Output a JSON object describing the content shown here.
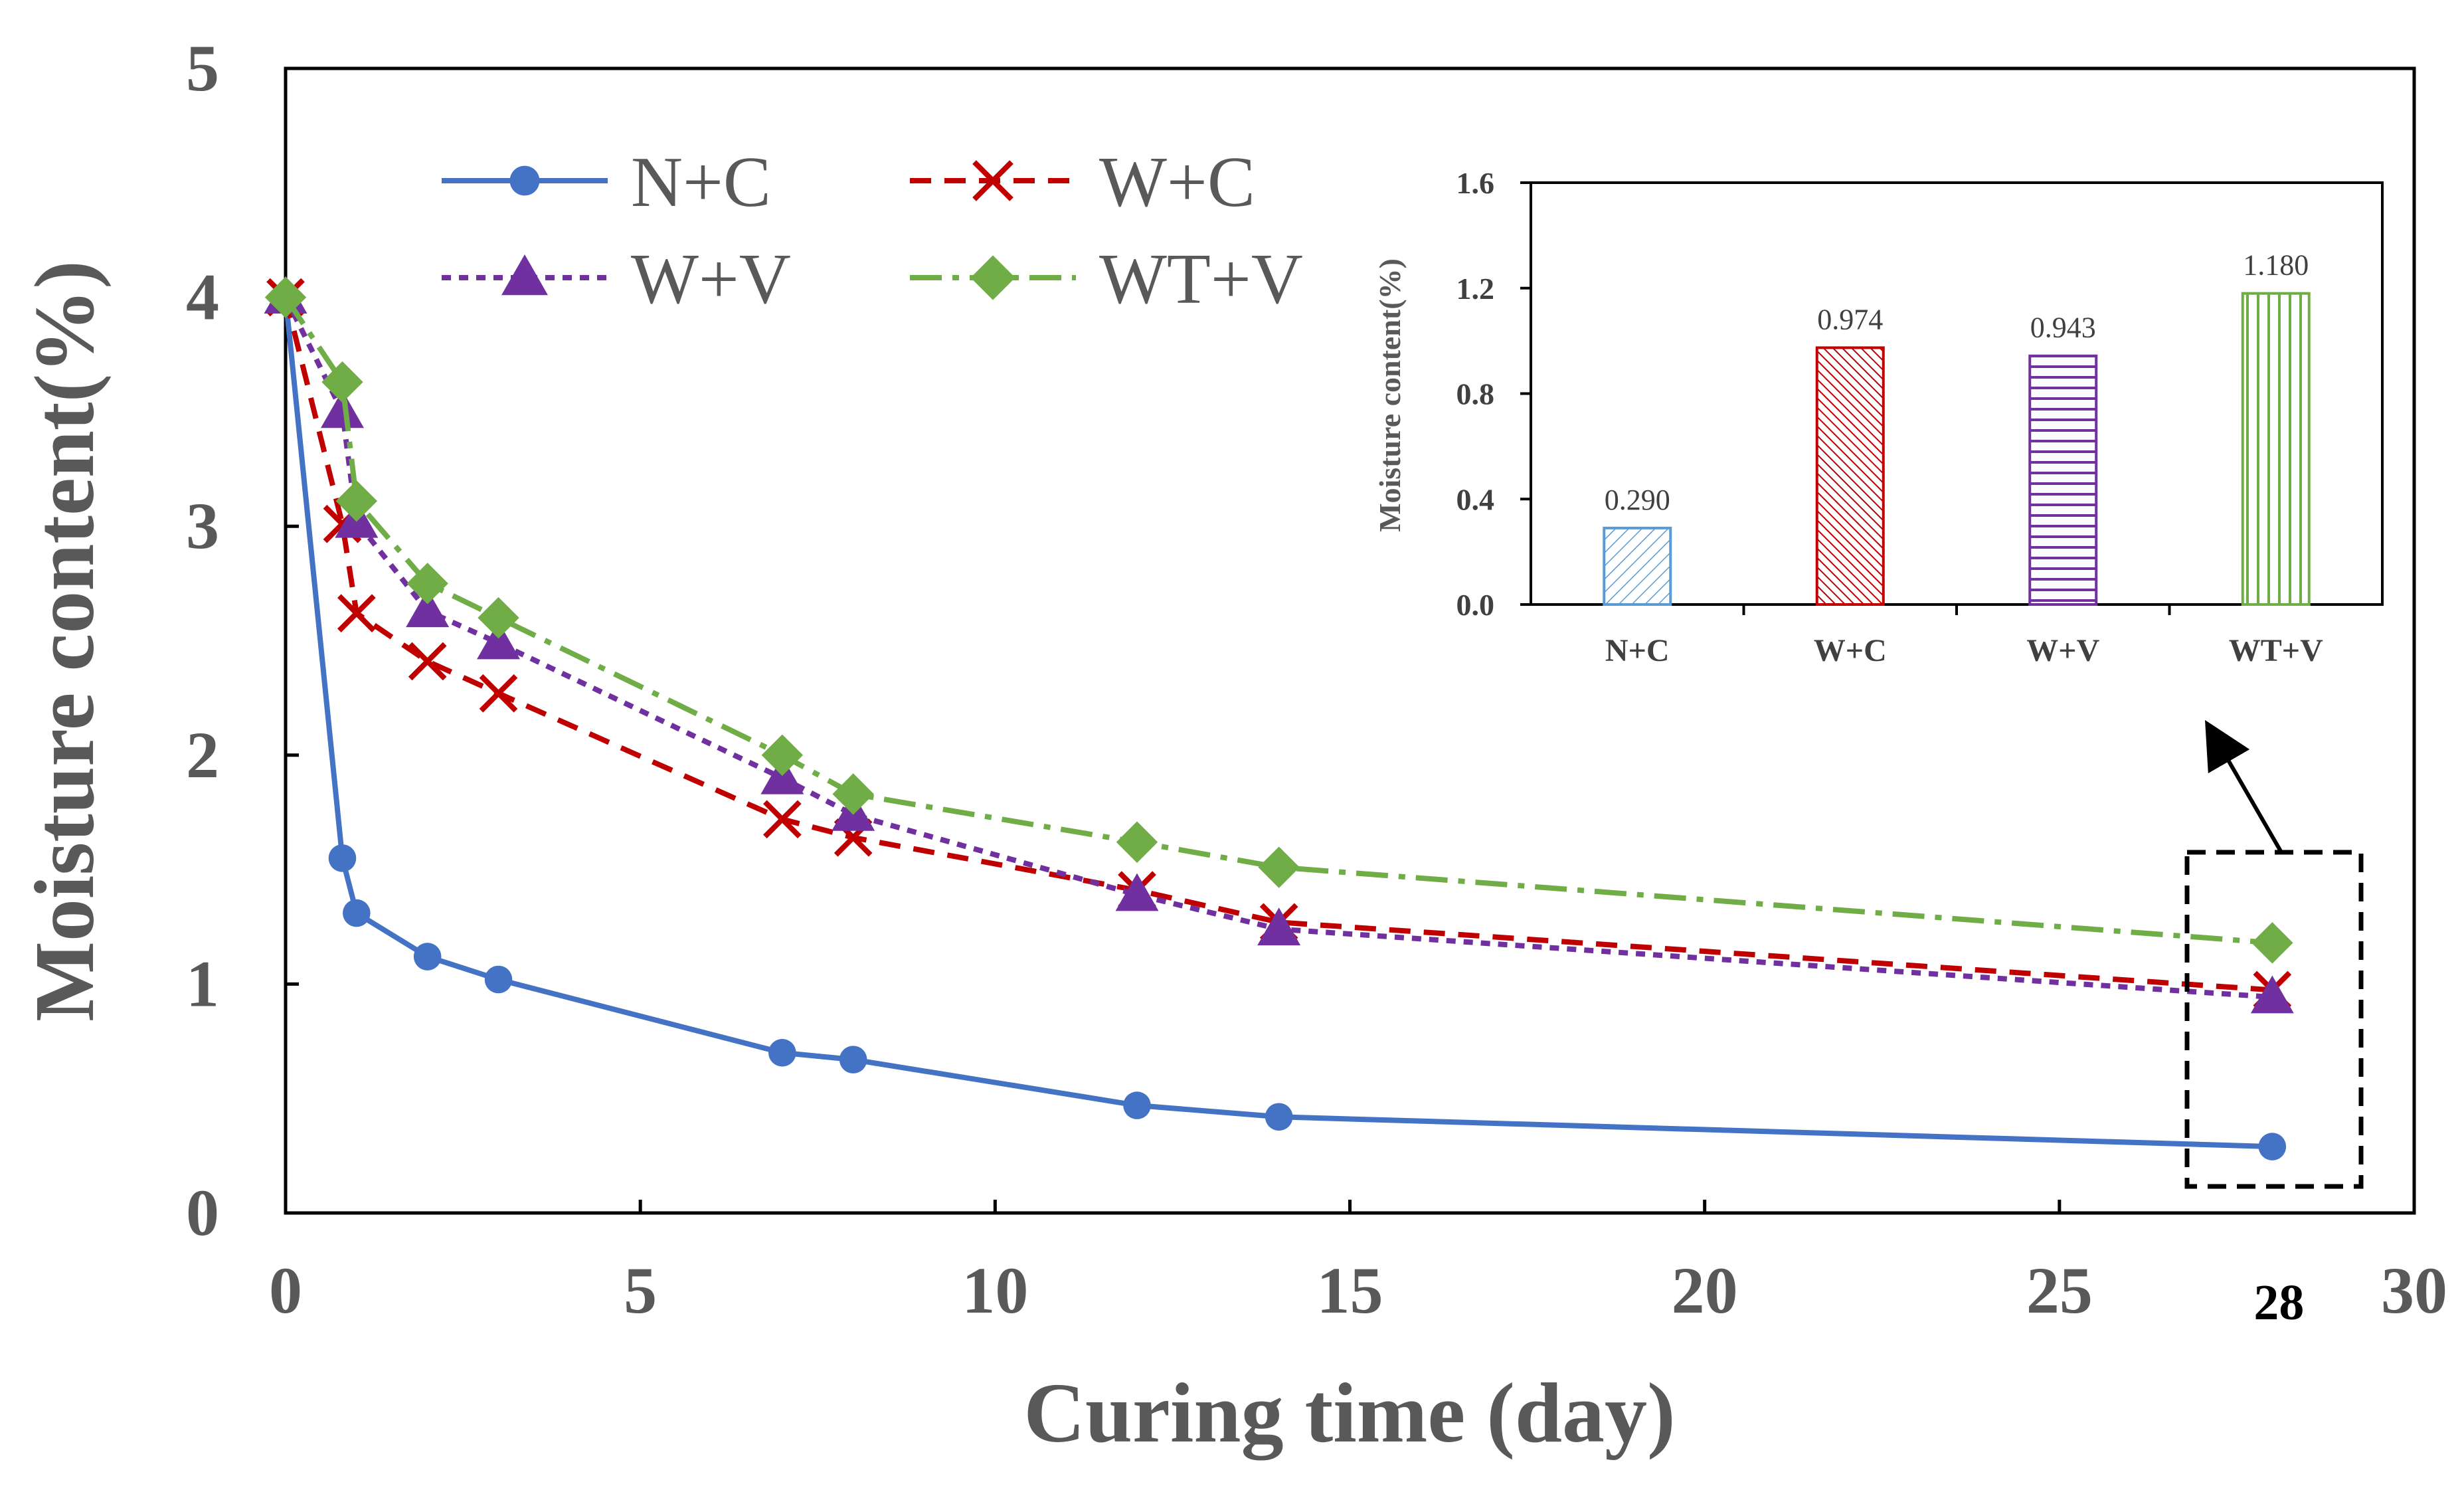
{
  "chart_data": {
    "main": {
      "type": "line",
      "xlabel": "Curing time (day)",
      "ylabel": "Moisture content(%)",
      "xlim": [
        0,
        30
      ],
      "ylim": [
        0,
        5
      ],
      "xticks": [
        "0",
        "5",
        "10",
        "15",
        "20",
        "25",
        "30"
      ],
      "extra_xtick": "28",
      "yticks": [
        "0",
        "1",
        "2",
        "3",
        "4",
        "5"
      ],
      "x": [
        0,
        0.8,
        1,
        2,
        3,
        7,
        8,
        12,
        14,
        28
      ],
      "series": [
        {
          "name": "N+C",
          "color": "#4472C4",
          "dash": "solid",
          "marker": "circle",
          "values": [
            4.0,
            1.55,
            1.31,
            1.12,
            1.02,
            0.7,
            0.67,
            0.47,
            0.42,
            0.29
          ]
        },
        {
          "name": "W+C",
          "color": "#C00000",
          "dash": "dash",
          "marker": "x",
          "values": [
            4.0,
            3.01,
            2.62,
            2.41,
            2.27,
            1.72,
            1.64,
            1.41,
            1.27,
            0.974
          ]
        },
        {
          "name": "W+V",
          "color": "#7030A0",
          "dash": "dot",
          "marker": "triangle",
          "values": [
            4.0,
            3.5,
            3.02,
            2.63,
            2.49,
            1.9,
            1.74,
            1.39,
            1.24,
            0.943
          ]
        },
        {
          "name": "WT+V",
          "color": "#70AD47",
          "dash": "dashdot",
          "marker": "diamond",
          "values": [
            4.0,
            3.63,
            3.11,
            2.75,
            2.6,
            2.0,
            1.83,
            1.62,
            1.51,
            1.18
          ]
        }
      ],
      "legend": "top-left",
      "annotation": "dashed box around day 28 with arrow pointing to inset"
    },
    "inset": {
      "type": "bar",
      "ylabel": "Moisture content(%)",
      "ylim": [
        0,
        1.6
      ],
      "yticks": [
        "0.0",
        "0.4",
        "0.8",
        "1.2",
        "1.6"
      ],
      "categories": [
        "N+C",
        "W+C",
        "W+V",
        "WT+V"
      ],
      "values": [
        0.29,
        0.974,
        0.943,
        1.18
      ],
      "value_labels": [
        "0.290",
        "0.974",
        "0.943",
        "1.180"
      ],
      "colors": [
        "#5B9BD5",
        "#C00000",
        "#7030A0",
        "#70AD47"
      ],
      "patterns": [
        "diag-right",
        "diag-dense",
        "horizontal",
        "vertical"
      ]
    }
  }
}
